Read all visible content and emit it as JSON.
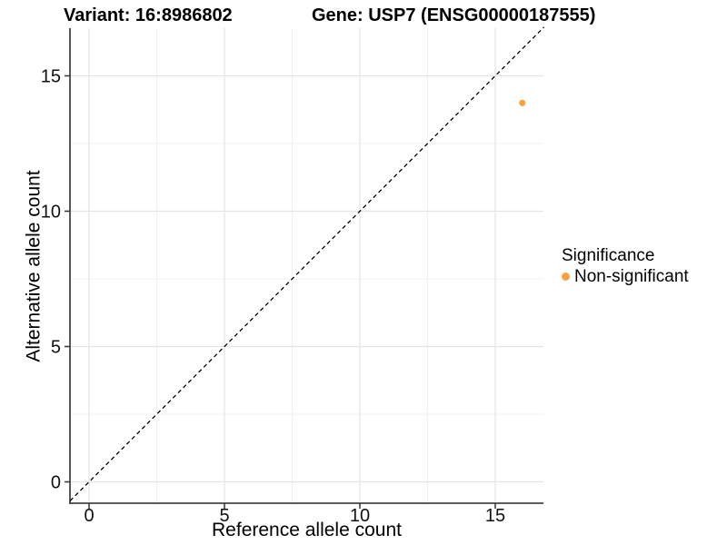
{
  "header": {
    "variant_title": "Variant: 16:8986802",
    "gene_title": "Gene: USP7 (ENSG00000187555)"
  },
  "chart_data": {
    "type": "scatter",
    "xlabel": "Reference allele count",
    "ylabel": "Alternative allele count",
    "xlim": [
      -0.7,
      16.8
    ],
    "ylim": [
      -0.8,
      16.8
    ],
    "x_major_ticks": [
      0,
      5,
      10,
      15
    ],
    "y_major_ticks": [
      0,
      5,
      10,
      15
    ],
    "x_minor_ticks": [
      2.5,
      7.5,
      12.5
    ],
    "y_minor_ticks": [
      2.5,
      7.5,
      12.5
    ],
    "grid": true,
    "points": [
      {
        "x": 16,
        "y": 14,
        "series": "Non-significant",
        "color": "#F9A242"
      }
    ],
    "reference_line": {
      "equation": "y = x",
      "style": "dashed",
      "color": "#000000"
    },
    "legend": {
      "position": "right",
      "title": "Significance",
      "entries": [
        {
          "label": "Non-significant",
          "color": "#F9A242",
          "marker": "circle"
        }
      ]
    },
    "colors": {
      "point_nonsignificant": "#F9A242",
      "grid_major": "#E4E4E4",
      "grid_minor": "#F1F1F1",
      "axis_line": "#454545",
      "tick_mark": "#333333",
      "tick_label": "#111111"
    }
  }
}
